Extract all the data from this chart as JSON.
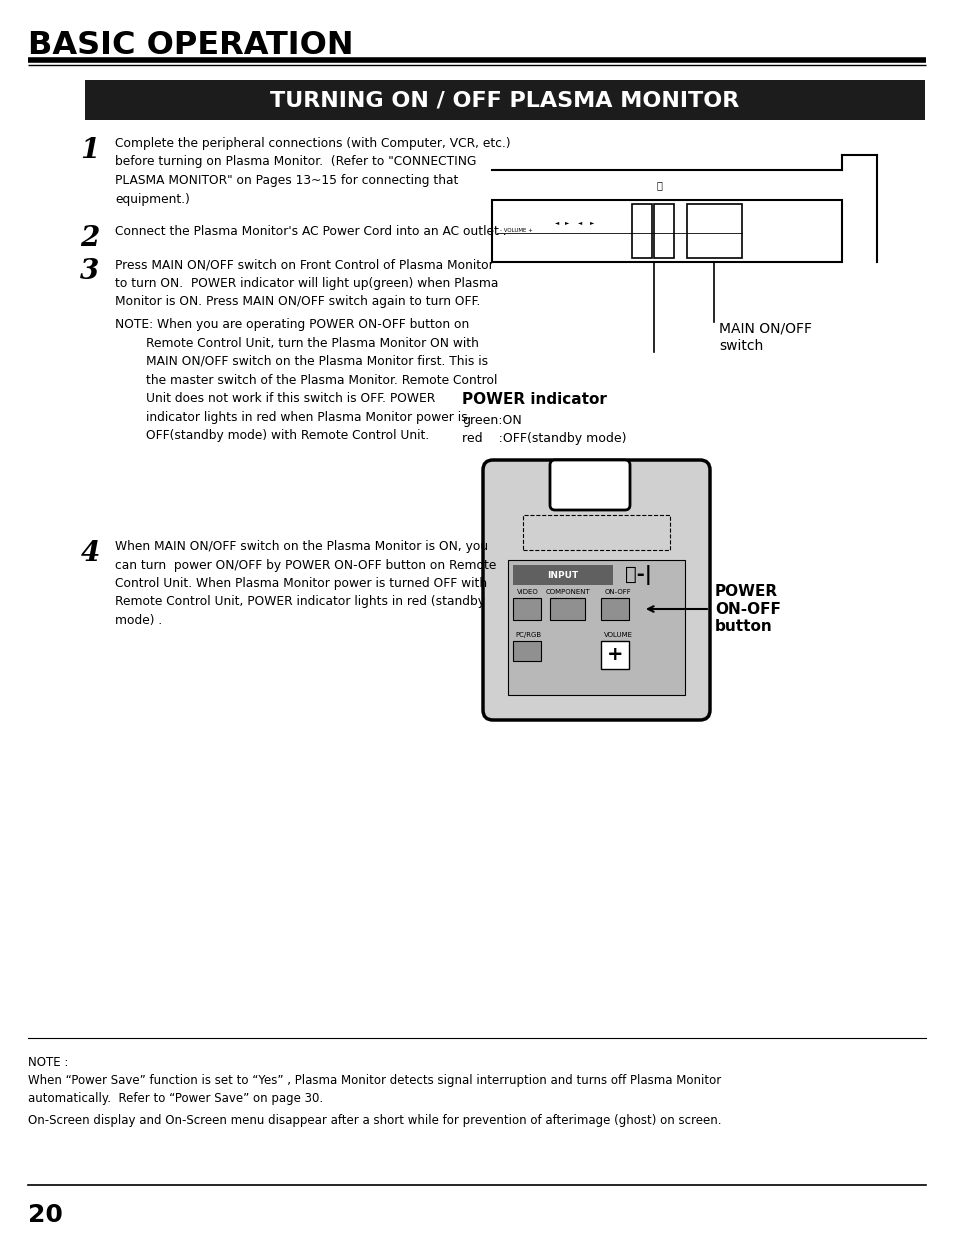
{
  "bg_color": "#ffffff",
  "header_title": "BASIC OPERATION",
  "section_title": "TURNING ON / OFF PLASMA MONITOR",
  "step1_num": "1",
  "step1_text": "Complete the peripheral connections (with Computer, VCR, etc.)\nbefore turning on Plasma Monitor.  (Refer to \"CONNECTING\nPLASMA MONITOR\" on Pages 13~15 for connecting that\nequipment.)",
  "step2_num": "2",
  "step2_text": "Connect the Plasma Monitor's AC Power Cord into an AC outlet .",
  "step3_num": "3",
  "step3_text": "Press MAIN ON/OFF switch on Front Control of Plasma Monitor\nto turn ON.  POWER indicator will light up(green) when Plasma\nMonitor is ON. Press MAIN ON/OFF switch again to turn OFF.",
  "note_text": "NOTE: When you are operating POWER ON-OFF button on\n        Remote Control Unit, turn the Plasma Monitor ON with\n        MAIN ON/OFF switch on the Plasma Monitor first. This is\n        the master switch of the Plasma Monitor. Remote Control\n        Unit does not work if this switch is OFF. POWER\n        indicator lights in red when Plasma Monitor power is\n        OFF(standby mode) with Remote Control Unit.",
  "step4_num": "4",
  "step4_text": "When MAIN ON/OFF switch on the Plasma Monitor is ON, you\ncan turn  power ON/OFF by POWER ON-OFF button on Remote\nControl Unit. When Plasma Monitor power is turned OFF with\nRemote Control Unit, POWER indicator lights in red (standby\nmode) .",
  "label_main_onoff": "MAIN ON/OFF\nswitch",
  "label_power_indicator": "POWER indicator",
  "label_green_on": "green:ON",
  "label_red_off": "red    :OFF(standby mode)",
  "label_power_onoff_btn": "POWER\nON-OFF\nbutton",
  "note_bottom_title": "NOTE :",
  "note_bottom_1": "When “Power Save” function is set to “Yes” , Plasma Monitor detects signal interruption and turns off Plasma Monitor\nautomatically.  Refer to “Power Save” on page 30.",
  "note_bottom_2": "On-Screen display and On-Screen menu disappear after a short while for prevention of afterimage (ghost) on screen.",
  "page_number": "20"
}
